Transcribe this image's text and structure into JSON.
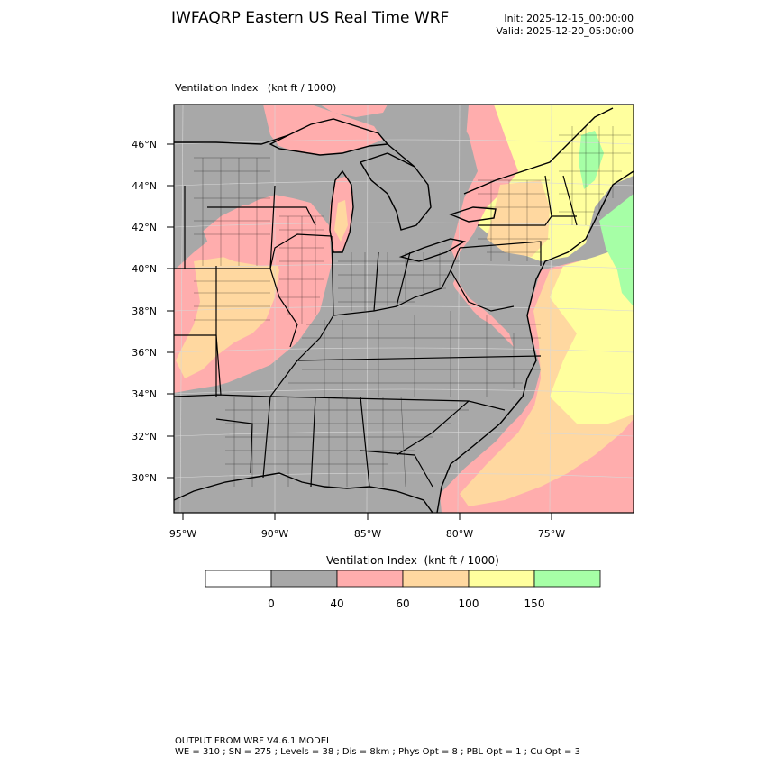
{
  "header": {
    "title": "IWFAQRP Eastern US Real Time WRF",
    "init": "Init: 2025-12-15_00:00:00",
    "valid": "Valid: 2025-12-20_05:00:00"
  },
  "map": {
    "field_title": "Ventilation Index   (knt ft / 1000)",
    "lat_labels": [
      "46°N",
      "44°N",
      "42°N",
      "40°N",
      "38°N",
      "36°N",
      "34°N",
      "32°N",
      "30°N"
    ],
    "lon_labels": [
      "95°W",
      "90°W",
      "85°W",
      "80°W",
      "75°W"
    ],
    "colors": {
      "none": "#ffffff",
      "gray": "#a8a8a8",
      "pink": "#ffadad",
      "orange": "#ffd8a0",
      "yellow": "#ffff9e",
      "green": "#a6ffa6"
    }
  },
  "colorbar": {
    "title": "Ventilation Index  (knt ft / 1000)",
    "ticks": [
      "0",
      "40",
      "60",
      "100",
      "150"
    ],
    "bins": [
      {
        "color": "#ffffff"
      },
      {
        "color": "#a8a8a8"
      },
      {
        "color": "#ffadad"
      },
      {
        "color": "#ffd8a0"
      },
      {
        "color": "#ffff9e"
      },
      {
        "color": "#a6ffa6"
      }
    ]
  },
  "footer": {
    "line1": "OUTPUT FROM WRF V4.6.1 MODEL",
    "line2": "WE = 310 ; SN = 275 ; Levels = 38 ; Dis = 8km ; Phys Opt = 8 ; PBL Opt = 1 ; Cu Opt = 3"
  }
}
